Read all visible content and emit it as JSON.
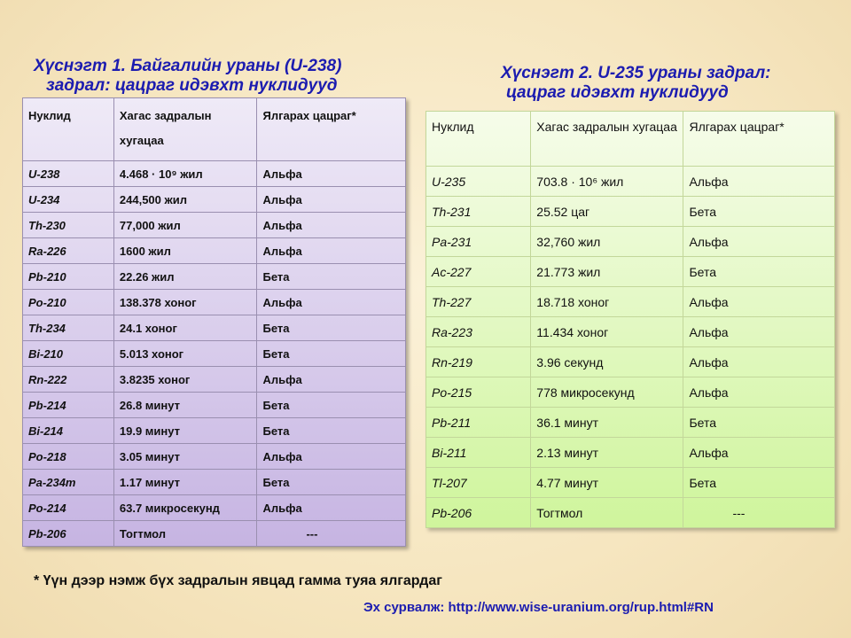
{
  "table1": {
    "title_line1": "Хүснэгт 1. Байгалийн ураны (U-238)",
    "title_line2": "задрал: цацраг идэвхт нуклидууд",
    "headers": [
      "Нуклид",
      "Хагас задралын хугацаа",
      "Ялгарах цацраг*"
    ],
    "rows": [
      [
        "U-238",
        "4.468 · 10⁹ жил",
        "Альфа"
      ],
      [
        "U-234",
        "244,500 жил",
        "Альфа"
      ],
      [
        "Th-230",
        "77,000 жил",
        "Альфа"
      ],
      [
        "Ra-226",
        "1600 жил",
        "Альфа"
      ],
      [
        "Pb-210",
        "22.26 жил",
        "Бета"
      ],
      [
        "Po-210",
        "138.378 хоног",
        "Альфа"
      ],
      [
        "Th-234",
        "24.1 хоног",
        "Бета"
      ],
      [
        "Bi-210",
        "5.013 хоног",
        "Бета"
      ],
      [
        "Rn-222",
        "3.8235 хоног",
        "Альфа"
      ],
      [
        "Pb-214",
        "26.8 минут",
        "Бета"
      ],
      [
        "Bi-214",
        "19.9 минут",
        "Бета"
      ],
      [
        "Po-218",
        "3.05 минут",
        "Альфа"
      ],
      [
        "Pa-234m",
        "1.17 минут",
        "Бета"
      ],
      [
        "Po-214",
        "63.7 микросекунд",
        "Альфа"
      ],
      [
        "Pb-206",
        "Тогтмол",
        "---"
      ]
    ]
  },
  "table2": {
    "title_line1": "Хүснэгт 2. U-235 ураны задрал:",
    "title_line2": "цацраг идэвхт нуклидууд",
    "headers": [
      "Нуклид",
      "Хагас задралын хугацаа",
      "Ялгарах цацраг*"
    ],
    "rows": [
      [
        "U-235",
        "703.8 · 10⁶ жил",
        "Альфа"
      ],
      [
        "Th-231",
        "25.52 цаг",
        "Бета"
      ],
      [
        "Pa-231",
        "32,760 жил",
        "Альфа"
      ],
      [
        "Ac-227",
        "21.773 жил",
        "Бета"
      ],
      [
        "Th-227",
        "18.718 хоног",
        "Альфа"
      ],
      [
        "Ra-223",
        "11.434 хоног",
        "Альфа"
      ],
      [
        "Rn-219",
        "3.96 секунд",
        "Альфа"
      ],
      [
        "Po-215",
        "778 микросекунд",
        "Альфа"
      ],
      [
        "Pb-211",
        "36.1 минут",
        "Бета"
      ],
      [
        "Bi-211",
        "2.13 минут",
        "Альфа"
      ],
      [
        "Tl-207",
        "4.77 минут",
        "Бета"
      ],
      [
        "Pb-206",
        "Тогтмол",
        "---"
      ]
    ]
  },
  "footnote": "* Үүн дээр нэмж бүх задралын явцад гамма туяа ялгардаг",
  "source": "Эх сурвалж: http://www.wise-uranium.org/rup.html#RN",
  "colors": {
    "title": "#1c1cb0",
    "table1_bg": "#c6b4e2",
    "table2_bg": "#cff59c",
    "background": "#f6e6c0"
  }
}
